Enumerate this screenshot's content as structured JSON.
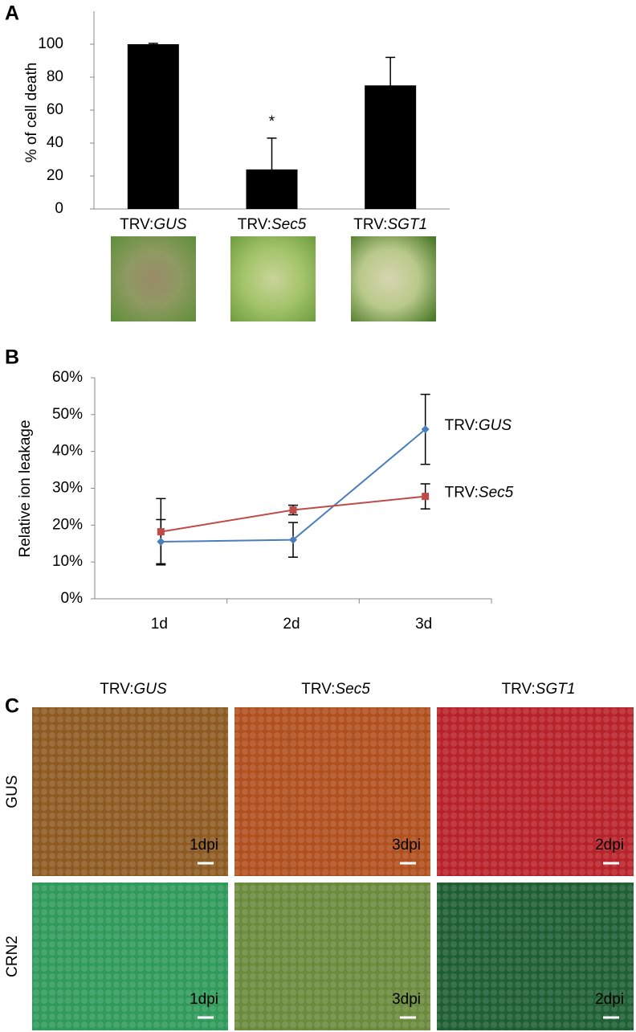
{
  "panel_labels": [
    "A",
    "B",
    "C"
  ],
  "chart_data": [
    {
      "type": "bar",
      "y_label": "% of cell death",
      "categories": [
        "TRV:GUS",
        "TRV:Sec5",
        "TRV:SGT1"
      ],
      "values": [
        100,
        24,
        75
      ],
      "errors": [
        0.5,
        19,
        17
      ],
      "color": "#000000",
      "ylim": [
        0,
        120
      ],
      "yticks": [
        0,
        20,
        40,
        60,
        80,
        100
      ],
      "annotations": [
        {
          "text": "*",
          "category": 1
        }
      ]
    },
    {
      "type": "line",
      "y_label": "Relative ion leakage",
      "categories": [
        "1d",
        "2d",
        "3d"
      ],
      "series": [
        {
          "name": "TRV:GUS",
          "color": "#4a7ebb",
          "marker": "diamond",
          "values": [
            15.5,
            16,
            46
          ],
          "errors": [
            6,
            4.7,
            9.5
          ]
        },
        {
          "name": "TRV:Sec5",
          "color": "#be4b48",
          "marker": "square",
          "values": [
            18.2,
            24.1,
            27.8
          ],
          "errors": [
            9,
            1.3,
            3.4
          ]
        }
      ],
      "ylim": [
        0,
        60
      ],
      "yticks": [
        {
          "value": 0,
          "label": "0%"
        },
        {
          "value": 10,
          "label": "10%"
        },
        {
          "value": 20,
          "label": "20%"
        },
        {
          "value": 30,
          "label": "30%"
        },
        {
          "value": 40,
          "label": "40%"
        },
        {
          "value": 50,
          "label": "50%"
        },
        {
          "value": 60,
          "label": "60%"
        }
      ]
    }
  ],
  "micrographs": {
    "columns": [
      "TRV:GUS",
      "TRV:Sec5",
      "TRV:SGT1"
    ],
    "rows": [
      "GUS",
      "CRN2"
    ],
    "time_labels": [
      [
        "1dpi",
        "3dpi",
        "2dpi"
      ],
      [
        "1dpi",
        "3dpi",
        "2dpi"
      ]
    ]
  }
}
